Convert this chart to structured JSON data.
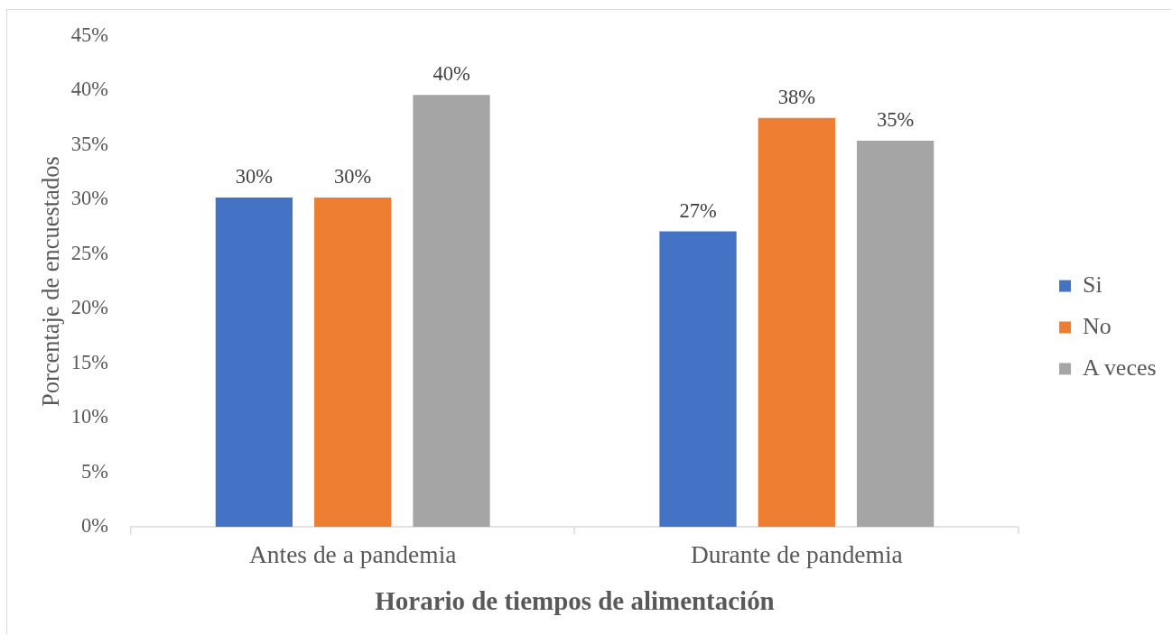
{
  "chart_data": {
    "type": "bar",
    "xlabel": "Horario de tiempos de alimentación",
    "ylabel": "Porcentaje de encuestados",
    "categories": [
      "Antes de a pandemia",
      "Durante de pandemia"
    ],
    "series": [
      {
        "name": "Si",
        "color": "#4472c4",
        "values": [
          30.2,
          27.1
        ],
        "value_labels": [
          "30%",
          "27%"
        ]
      },
      {
        "name": "No",
        "color": "#ed7d31",
        "values": [
          30.2,
          37.5
        ],
        "value_labels": [
          "30%",
          "38%"
        ]
      },
      {
        "name": "A veces",
        "color": "#a5a5a5",
        "values": [
          39.6,
          35.4
        ],
        "value_labels": [
          "40%",
          "35%"
        ]
      }
    ],
    "ylim": [
      0,
      45
    ],
    "yticks": [
      {
        "value": 0,
        "label": "0%"
      },
      {
        "value": 5,
        "label": "5%"
      },
      {
        "value": 10,
        "label": "10%"
      },
      {
        "value": 15,
        "label": "15%"
      },
      {
        "value": 20,
        "label": "20%"
      },
      {
        "value": 25,
        "label": "25%"
      },
      {
        "value": 30,
        "label": "30%"
      },
      {
        "value": 35,
        "label": "35%"
      },
      {
        "value": 40,
        "label": "40%"
      },
      {
        "value": 45,
        "label": "45%"
      }
    ],
    "legend": "right"
  }
}
